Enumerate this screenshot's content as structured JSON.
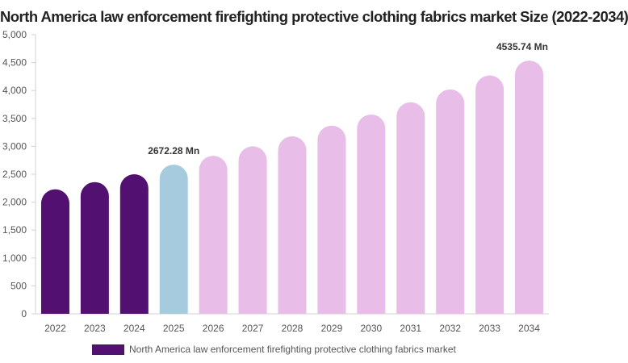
{
  "chart_data": {
    "type": "bar",
    "title": "North America law enforcement firefighting protective clothing fabrics market Size (2022-2034)",
    "categories": [
      "2022",
      "2023",
      "2024",
      "2025",
      "2026",
      "2027",
      "2028",
      "2029",
      "2030",
      "2031",
      "2032",
      "2033",
      "2034"
    ],
    "series": [
      {
        "name": "North America law enforcement firefighting protective clothing fabrics market",
        "values": [
          2230,
          2360,
          2500,
          2672.28,
          2830,
          3000,
          3180,
          3370,
          3570,
          3790,
          4020,
          4270,
          4535.74
        ]
      }
    ],
    "ylim": [
      0,
      5000
    ],
    "yticks": [
      0,
      500,
      1000,
      1500,
      2000,
      2500,
      3000,
      3500,
      4000,
      4500,
      5000
    ],
    "ytick_labels": [
      "0",
      "500",
      "1,000",
      "1,500",
      "2,000",
      "2,500",
      "3,000",
      "3,500",
      "4,000",
      "4,500",
      "5,000"
    ],
    "annotations": [
      {
        "category": "2025",
        "text": "2672.28 Mn"
      },
      {
        "category": "2034",
        "text": "4535.74 Mn"
      }
    ],
    "bar_colors": {
      "historical": "#521170",
      "base_year": "#a6cbdf",
      "forecast": "#e8bde8"
    },
    "bar_color_sequence": [
      "historical",
      "historical",
      "historical",
      "base_year",
      "forecast",
      "forecast",
      "forecast",
      "forecast",
      "forecast",
      "forecast",
      "forecast",
      "forecast",
      "forecast"
    ],
    "legend_color": "#521170",
    "legend_position": "bottom",
    "grid": false
  }
}
